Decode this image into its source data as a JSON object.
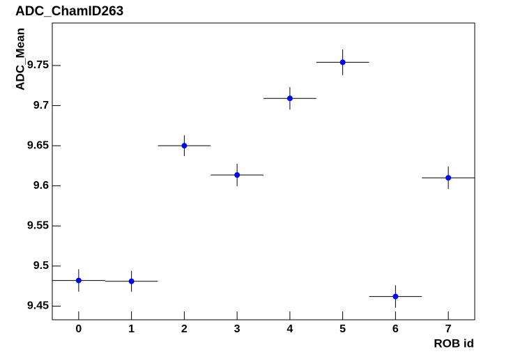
{
  "chart_data": {
    "type": "errorbar",
    "title": "ADC_ChamID263",
    "xlabel": "ROB id",
    "ylabel": "ADC_Mean",
    "x": [
      0,
      1,
      2,
      3,
      4,
      5,
      6,
      7
    ],
    "values": [
      9.482,
      9.481,
      9.65,
      9.6135,
      9.709,
      9.754,
      9.462,
      9.61
    ],
    "errors": [
      0.014,
      0.013,
      0.013,
      0.014,
      0.014,
      0.016,
      0.014,
      0.014
    ],
    "xerr": 0.5,
    "color": "#0000ff",
    "xlim": [
      -0.5,
      7.5
    ],
    "ylim": [
      9.433,
      9.803
    ],
    "xticks": [
      0,
      1,
      2,
      3,
      4,
      5,
      6,
      7
    ],
    "yticks": [
      9.45,
      9.5,
      9.55,
      9.6,
      9.65,
      9.7,
      9.75
    ]
  }
}
